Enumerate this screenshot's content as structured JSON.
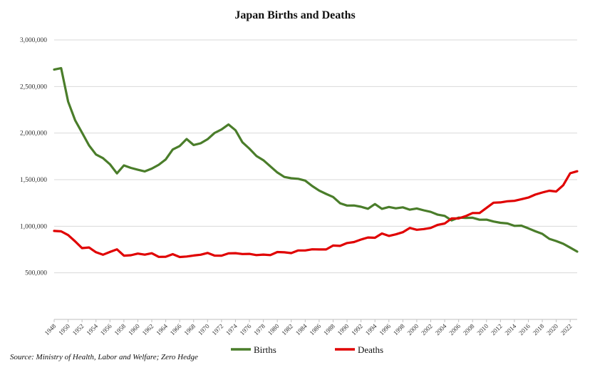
{
  "chart_data": {
    "type": "line",
    "title": "Japan Births and Deaths",
    "xlabel": "",
    "ylabel": "",
    "ylim": [
      0,
      3000000
    ],
    "yticks": [
      500000,
      1000000,
      1500000,
      2000000,
      2500000,
      3000000
    ],
    "ytick_labels": [
      "500,000",
      "1,000,000",
      "1,500,000",
      "2,000,000",
      "2,500,000",
      "3,000,000"
    ],
    "xlim": [
      1948,
      2023
    ],
    "xtick_labels": [
      "1948",
      "1950",
      "1952",
      "1954",
      "1956",
      "1958",
      "1960",
      "1962",
      "1964",
      "1966",
      "1968",
      "1970",
      "1972",
      "1974",
      "1976",
      "1978",
      "1980",
      "1982",
      "1984",
      "1986",
      "1988",
      "1990",
      "1992",
      "1994",
      "1996",
      "1998",
      "2000",
      "2002",
      "2004",
      "2006",
      "2008",
      "2010",
      "2012",
      "2014",
      "2016",
      "2018",
      "2020",
      "2022"
    ],
    "grid": true,
    "legend_position": "bottom",
    "source": "Source: Ministry of Health, Labor and Welfare; Zero Hedge",
    "series": [
      {
        "name": "Births",
        "color": "#4a7d2a",
        "x": [
          1948,
          1949,
          1950,
          1951,
          1952,
          1953,
          1954,
          1955,
          1956,
          1957,
          1958,
          1959,
          1960,
          1961,
          1962,
          1963,
          1964,
          1965,
          1966,
          1967,
          1968,
          1969,
          1970,
          1971,
          1972,
          1973,
          1974,
          1975,
          1976,
          1977,
          1978,
          1979,
          1980,
          1981,
          1982,
          1983,
          1984,
          1985,
          1986,
          1987,
          1988,
          1989,
          1990,
          1991,
          1992,
          1993,
          1994,
          1995,
          1996,
          1997,
          1998,
          1999,
          2000,
          2001,
          2002,
          2003,
          2004,
          2005,
          2006,
          2007,
          2008,
          2009,
          2010,
          2011,
          2012,
          2013,
          2014,
          2015,
          2016,
          2017,
          2018,
          2019,
          2020,
          2021,
          2022,
          2023
        ],
        "values": [
          2682000,
          2697000,
          2338000,
          2138000,
          2005000,
          1868000,
          1770000,
          1731000,
          1665000,
          1567000,
          1653000,
          1626000,
          1606000,
          1589000,
          1619000,
          1660000,
          1717000,
          1824000,
          1861000,
          1936000,
          1872000,
          1890000,
          1934000,
          2001000,
          2039000,
          2092000,
          2030000,
          1901000,
          1833000,
          1755000,
          1709000,
          1643000,
          1577000,
          1529000,
          1515000,
          1509000,
          1490000,
          1432000,
          1383000,
          1347000,
          1314000,
          1247000,
          1222000,
          1223000,
          1209000,
          1188000,
          1238000,
          1187000,
          1207000,
          1192000,
          1203000,
          1178000,
          1191000,
          1171000,
          1154000,
          1124000,
          1111000,
          1063000,
          1093000,
          1090000,
          1091000,
          1070000,
          1071000,
          1051000,
          1037000,
          1030000,
          1004000,
          1006000,
          977000,
          946000,
          918000,
          865000,
          841000,
          812000,
          771000,
          728000
        ]
      },
      {
        "name": "Deaths",
        "color": "#e00000",
        "x": [
          1948,
          1949,
          1950,
          1951,
          1952,
          1953,
          1954,
          1955,
          1956,
          1957,
          1958,
          1959,
          1960,
          1961,
          1962,
          1963,
          1964,
          1965,
          1966,
          1967,
          1968,
          1969,
          1970,
          1971,
          1972,
          1973,
          1974,
          1975,
          1976,
          1977,
          1978,
          1979,
          1980,
          1981,
          1982,
          1983,
          1984,
          1985,
          1986,
          1987,
          1988,
          1989,
          1990,
          1991,
          1992,
          1993,
          1994,
          1995,
          1996,
          1997,
          1998,
          1999,
          2000,
          2001,
          2002,
          2003,
          2004,
          2005,
          2006,
          2007,
          2008,
          2009,
          2010,
          2011,
          2012,
          2013,
          2014,
          2015,
          2016,
          2017,
          2018,
          2019,
          2020,
          2021,
          2022,
          2023
        ],
        "values": [
          950000,
          945000,
          905000,
          838000,
          765000,
          772000,
          721000,
          694000,
          724000,
          752000,
          684000,
          689000,
          706000,
          695000,
          710000,
          671000,
          673000,
          700000,
          670000,
          675000,
          686000,
          694000,
          713000,
          685000,
          684000,
          709000,
          711000,
          702000,
          703000,
          690000,
          696000,
          690000,
          723000,
          720000,
          712000,
          740000,
          740000,
          752000,
          751000,
          751000,
          793000,
          789000,
          820000,
          830000,
          857000,
          879000,
          876000,
          922000,
          896000,
          913000,
          936000,
          982000,
          962000,
          970000,
          982000,
          1015000,
          1029000,
          1084000,
          1084000,
          1108000,
          1142000,
          1142000,
          1197000,
          1253000,
          1256000,
          1268000,
          1273000,
          1290000,
          1308000,
          1340000,
          1362000,
          1381000,
          1373000,
          1440000,
          1569000,
          1590000
        ]
      }
    ]
  }
}
